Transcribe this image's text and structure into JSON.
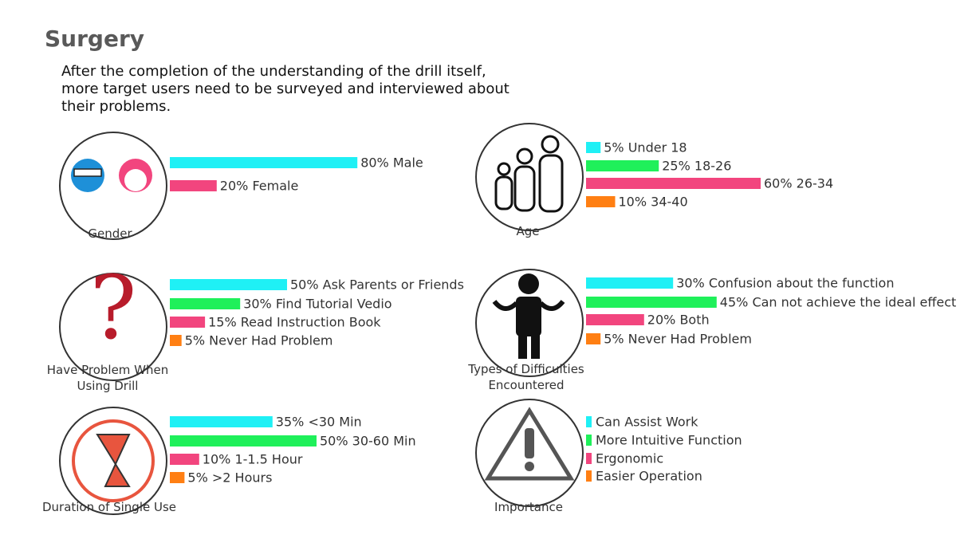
{
  "title": "Surgery",
  "description": "After the completion of the understanding of the drill itself, more target users need to be surveyed and interviewed about their problems.",
  "chart_data": [
    {
      "type": "bar",
      "title": "Gender",
      "values": [
        80,
        20
      ],
      "value_labels": [
        "80% Male",
        "20% Female"
      ],
      "colors": [
        "#1ff0f5",
        "#f2457e"
      ]
    },
    {
      "type": "bar",
      "title": "Age",
      "values": [
        5,
        25,
        60,
        10
      ],
      "value_labels": [
        "5% Under 18",
        "25% 18-26",
        "60% 26-34",
        "10% 34-40"
      ],
      "colors": [
        "#1ff0f5",
        "#1ff05a",
        "#f2457e",
        "#ff7f13"
      ]
    },
    {
      "type": "bar",
      "title": "Have Problem When Using Drill",
      "values": [
        50,
        30,
        15,
        5
      ],
      "value_labels": [
        "50% Ask Parents or Friends",
        "30% Find Tutorial Vedio",
        "15% Read Instruction Book",
        "5% Never Had Problem"
      ],
      "colors": [
        "#1ff0f5",
        "#1ff05a",
        "#f2457e",
        "#ff7f13"
      ]
    },
    {
      "type": "bar",
      "title": "Types of Difficulties Encountered",
      "values": [
        30,
        45,
        20,
        5
      ],
      "value_labels": [
        "30% Confusion about the function",
        "45% Can not achieve the ideal effect",
        "20% Both",
        "5% Never Had Problem"
      ],
      "colors": [
        "#1ff0f5",
        "#1ff05a",
        "#f2457e",
        "#ff7f13"
      ]
    },
    {
      "type": "bar",
      "title": "Duration of Single Use",
      "values": [
        35,
        50,
        10,
        5
      ],
      "value_labels": [
        "35% <30 Min",
        "50% 30-60 Min",
        "10% 1-1.5 Hour",
        "5% >2 Hours"
      ],
      "colors": [
        "#1ff0f5",
        "#1ff05a",
        "#f2457e",
        "#ff7f13"
      ]
    },
    {
      "type": "list",
      "title": "Importance",
      "items": [
        "Can Assist Work",
        "More Intuitive Function",
        "Ergonomic",
        "Easier Operation"
      ],
      "colors": [
        "#1ff0f5",
        "#1ff05a",
        "#f2457e",
        "#ff7f13"
      ]
    }
  ]
}
